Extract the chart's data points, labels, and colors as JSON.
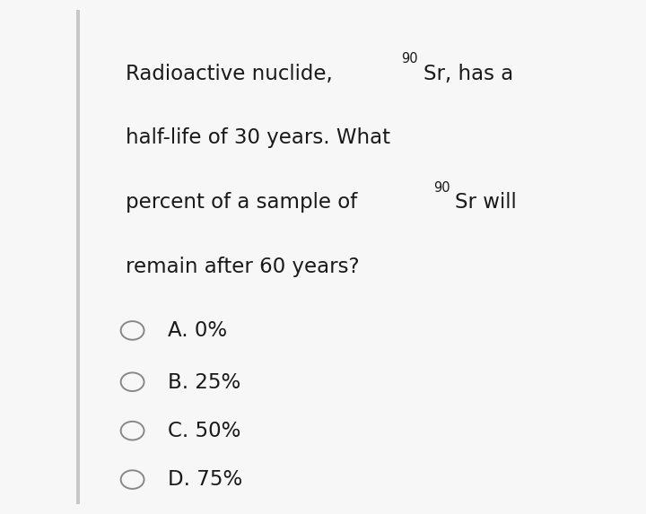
{
  "background_color": "#f7f7f7",
  "left_bar_color": "#c8c8c8",
  "text_color": "#1a1a1a",
  "circle_color": "#888888",
  "font_size": 16.5,
  "option_font_size": 16.5,
  "superscript_size": 10.5,
  "options": [
    "A. 0%",
    "B. 25%",
    "C. 50%",
    "D. 75%"
  ]
}
